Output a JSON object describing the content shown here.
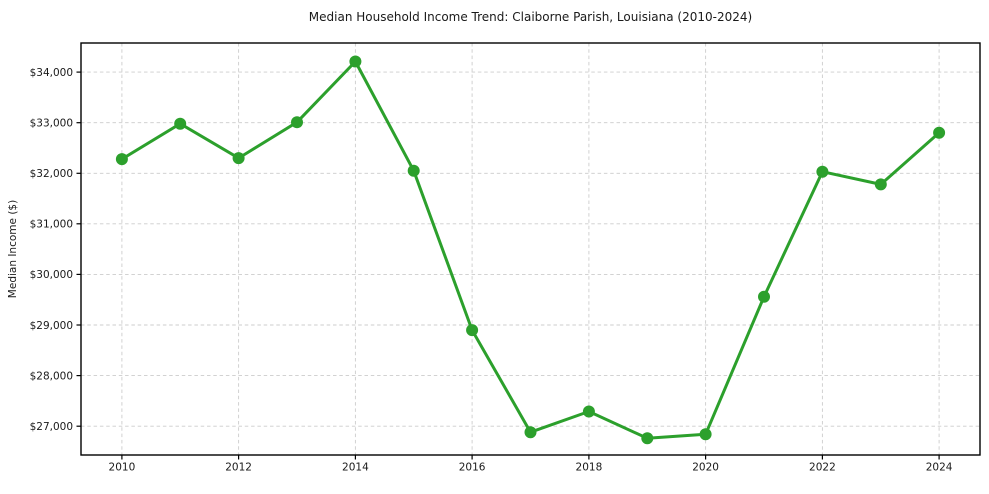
{
  "chart_data": {
    "type": "line",
    "title": "Median Household Income Trend: Claiborne Parish, Louisiana (2010-2024)",
    "xlabel": "",
    "ylabel": "Median Income ($)",
    "series_name": "Median household income",
    "x": [
      2010,
      2011,
      2012,
      2013,
      2014,
      2015,
      2016,
      2017,
      2018,
      2019,
      2020,
      2021,
      2022,
      2023,
      2024
    ],
    "values": [
      32280,
      32980,
      32300,
      33010,
      34210,
      32050,
      28900,
      26880,
      27290,
      26760,
      26840,
      29560,
      32030,
      31780,
      32800
    ],
    "xticks": [
      2010,
      2012,
      2014,
      2016,
      2018,
      2020,
      2022,
      2024
    ],
    "xtick_labels": [
      "2010",
      "2012",
      "2014",
      "2016",
      "2018",
      "2020",
      "2022",
      "2024"
    ],
    "yticks": [
      27000,
      28000,
      29000,
      30000,
      31000,
      32000,
      33000,
      34000
    ],
    "ytick_labels": [
      "$27,000",
      "$28,000",
      "$29,000",
      "$30,000",
      "$31,000",
      "$32,000",
      "$33,000",
      "$34,000"
    ],
    "xlim": [
      2009.3,
      2024.7
    ],
    "ylim": [
      26430,
      34575
    ],
    "grid": true,
    "grid_style": "dashed",
    "legend": false,
    "marker": "circle",
    "marker_size": 12,
    "line_width": 3,
    "colors": {
      "line": "#2ca02c",
      "marker": "#2ca02c",
      "grid": "#cccccc",
      "axis": "#000000",
      "text": "#1a1a1a",
      "background": "#ffffff"
    }
  }
}
